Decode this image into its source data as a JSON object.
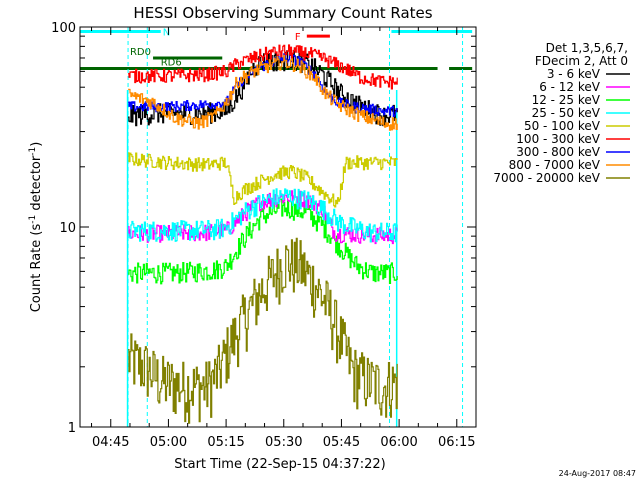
{
  "chart_data": {
    "type": "line",
    "title": "HESSI Observing Summary Count Rates",
    "xlabel": "Start Time (22-Sep-15 04:37:22)",
    "ylabel_main": "Count Rate (s",
    "ylabel_sup1": "-1",
    "ylabel_mid": " detector",
    "ylabel_sup2": "-1",
    "ylabel_end": ")",
    "footer": "24-Aug-2017 08:47",
    "x_range_min": [
      37,
      140
    ],
    "y_log": true,
    "ylim": [
      1,
      100
    ],
    "x_ticks": [
      {
        "min": 45,
        "label": "04:45"
      },
      {
        "min": 60,
        "label": "05:00"
      },
      {
        "min": 75,
        "label": "05:15"
      },
      {
        "min": 90,
        "label": "05:30"
      },
      {
        "min": 105,
        "label": "05:45"
      },
      {
        "min": 120,
        "label": "06:00"
      },
      {
        "min": 135,
        "label": "06:15"
      }
    ],
    "y_ticks": [
      {
        "val": 1,
        "label": "1"
      },
      {
        "val": 10,
        "label": "10"
      },
      {
        "val": 100,
        "label": "100"
      }
    ],
    "legend": {
      "header": [
        "Det 1,3,5,6,7,",
        "FDecim 2, Att 0"
      ],
      "entries": [
        {
          "label": "3 - 6 keV",
          "color": "#000000"
        },
        {
          "label": "6 - 12 keV",
          "color": "#ff00ff"
        },
        {
          "label": "12 - 25 keV",
          "color": "#00ff00"
        },
        {
          "label": "25 - 50 keV",
          "color": "#00ffff"
        },
        {
          "label": "50 - 100 keV",
          "color": "#cccc00"
        },
        {
          "label": "100 - 300 keV",
          "color": "#ff0000"
        },
        {
          "label": "300 - 800 keV",
          "color": "#0000ff"
        },
        {
          "label": "800 - 7000 keV",
          "color": "#ff8c00"
        },
        {
          "label": "7000 - 20000 keV",
          "color": "#808000"
        }
      ]
    },
    "flags": [
      {
        "label": "N",
        "color": "#00ffff",
        "value": 95,
        "segments": [
          [
            37,
            58
          ],
          [
            118,
            139
          ]
        ]
      },
      {
        "label": "F",
        "color": "#ff0000",
        "value": 90,
        "segments": [
          [
            96,
            102
          ]
        ]
      },
      {
        "label": "RD0",
        "color": "#006400",
        "value": 70,
        "segments": [
          [
            56,
            74
          ]
        ],
        "label_at": 50
      },
      {
        "label": "RD6",
        "color": "#006400",
        "value": 62,
        "segments": [
          [
            37,
            130
          ],
          [
            133,
            139
          ]
        ],
        "label_at": 58
      }
    ],
    "night_boundaries_min": [
      49.5,
      54.5,
      117.5,
      136.5
    ],
    "data_start_min": 49.5,
    "data_end_min": 119.5,
    "series": [
      {
        "name": "3 - 6 keV",
        "color": "#000000",
        "noise": 0.12,
        "keypoints": [
          [
            49.5,
            36
          ],
          [
            57,
            37
          ],
          [
            68,
            37
          ],
          [
            75,
            38
          ],
          [
            78,
            46
          ],
          [
            82,
            62
          ],
          [
            84,
            67
          ],
          [
            88,
            68
          ],
          [
            92,
            69
          ],
          [
            96,
            66
          ],
          [
            100,
            58
          ],
          [
            105,
            46
          ],
          [
            110,
            40
          ],
          [
            116,
            36
          ],
          [
            119.5,
            37
          ]
        ]
      },
      {
        "name": "6 - 12 keV",
        "color": "#ff00ff",
        "noise": 0.1,
        "keypoints": [
          [
            49.5,
            9.3
          ],
          [
            60,
            9.3
          ],
          [
            70,
            9.4
          ],
          [
            75,
            9.6
          ],
          [
            80,
            11.8
          ],
          [
            84,
            13.5
          ],
          [
            90,
            14.2
          ],
          [
            96,
            13.8
          ],
          [
            100,
            12.4
          ],
          [
            103,
            9.5
          ],
          [
            104,
            9.3
          ],
          [
            109,
            9.2
          ],
          [
            113,
            9.1
          ],
          [
            119.5,
            9.1
          ]
        ]
      },
      {
        "name": "12 - 25 keV",
        "color": "#00ff00",
        "noise": 0.12,
        "keypoints": [
          [
            49.5,
            5.9
          ],
          [
            62,
            5.9
          ],
          [
            72,
            6.1
          ],
          [
            75,
            6.4
          ],
          [
            80,
            9
          ],
          [
            84,
            11.2
          ],
          [
            90,
            12.6
          ],
          [
            96,
            11.8
          ],
          [
            100,
            10.2
          ],
          [
            104,
            8.2
          ],
          [
            109,
            6.4
          ],
          [
            113,
            5.9
          ],
          [
            119.5,
            5.9
          ]
        ]
      },
      {
        "name": "25 - 50 keV",
        "color": "#00ffff",
        "noise": 0.12,
        "keypoints": [
          [
            49.5,
            9.6
          ],
          [
            62,
            9.6
          ],
          [
            72,
            9.7
          ],
          [
            75,
            10
          ],
          [
            80,
            12
          ],
          [
            84,
            13.3
          ],
          [
            90,
            14.4
          ],
          [
            96,
            13.7
          ],
          [
            100,
            12.4
          ],
          [
            104,
            10.6
          ],
          [
            109,
            9.8
          ],
          [
            113,
            9.4
          ],
          [
            119.5,
            9.4
          ]
        ]
      },
      {
        "name": "50 - 100 keV",
        "color": "#cccc00",
        "noise": 0.08,
        "keypoints": [
          [
            49.5,
            22
          ],
          [
            60,
            21
          ],
          [
            70,
            20.5
          ],
          [
            75,
            21
          ],
          [
            77,
            14
          ],
          [
            80,
            15.5
          ],
          [
            84,
            17
          ],
          [
            88,
            18.5
          ],
          [
            92,
            19
          ],
          [
            96,
            17.5
          ],
          [
            100,
            15
          ],
          [
            104,
            13
          ],
          [
            106,
            21
          ],
          [
            110,
            21
          ],
          [
            116,
            21
          ],
          [
            119.5,
            21
          ]
        ]
      },
      {
        "name": "100 - 300 keV",
        "color": "#ff0000",
        "noise": 0.08,
        "keypoints": [
          [
            49.5,
            57
          ],
          [
            60,
            57
          ],
          [
            70,
            58
          ],
          [
            75,
            60
          ],
          [
            78,
            66
          ],
          [
            82,
            70
          ],
          [
            86,
            74
          ],
          [
            90,
            76
          ],
          [
            96,
            74
          ],
          [
            100,
            70
          ],
          [
            106,
            62
          ],
          [
            110,
            56
          ],
          [
            116,
            53
          ],
          [
            119.5,
            53
          ]
        ]
      },
      {
        "name": "300 - 800 keV",
        "color": "#0000ff",
        "noise": 0.06,
        "keypoints": [
          [
            49.5,
            40
          ],
          [
            60,
            40
          ],
          [
            70,
            41
          ],
          [
            75,
            42
          ],
          [
            78,
            52
          ],
          [
            82,
            60
          ],
          [
            86,
            66
          ],
          [
            90,
            70
          ],
          [
            94,
            68
          ],
          [
            98,
            58
          ],
          [
            101,
            47
          ],
          [
            104,
            42
          ],
          [
            108,
            40
          ],
          [
            116,
            38
          ],
          [
            119.5,
            38
          ]
        ]
      },
      {
        "name": "800 - 7000 keV",
        "color": "#ff8c00",
        "noise": 0.08,
        "keypoints": [
          [
            49.5,
            46
          ],
          [
            56,
            42
          ],
          [
            62,
            35
          ],
          [
            68,
            33
          ],
          [
            72,
            36
          ],
          [
            75,
            42
          ],
          [
            78,
            54
          ],
          [
            82,
            60
          ],
          [
            86,
            64
          ],
          [
            90,
            67
          ],
          [
            94,
            64
          ],
          [
            98,
            56
          ],
          [
            101,
            46
          ],
          [
            104,
            41
          ],
          [
            110,
            36
          ],
          [
            116,
            33
          ],
          [
            119.5,
            33
          ]
        ]
      },
      {
        "name": "7000 - 20000 keV",
        "color": "#808000",
        "noise": 0.35,
        "keypoints": [
          [
            49.5,
            2.2
          ],
          [
            54,
            2.0
          ],
          [
            58,
            1.7
          ],
          [
            64,
            1.6
          ],
          [
            70,
            1.6
          ],
          [
            73,
            1.9
          ],
          [
            76,
            2.6
          ],
          [
            80,
            3.6
          ],
          [
            84,
            4.8
          ],
          [
            88,
            6
          ],
          [
            90,
            6.8
          ],
          [
            94,
            6.5
          ],
          [
            98,
            5.2
          ],
          [
            102,
            3.8
          ],
          [
            105,
            2.7
          ],
          [
            108,
            1.9
          ],
          [
            112,
            1.7
          ],
          [
            116,
            1.6
          ],
          [
            119.5,
            1.7
          ]
        ]
      }
    ]
  }
}
